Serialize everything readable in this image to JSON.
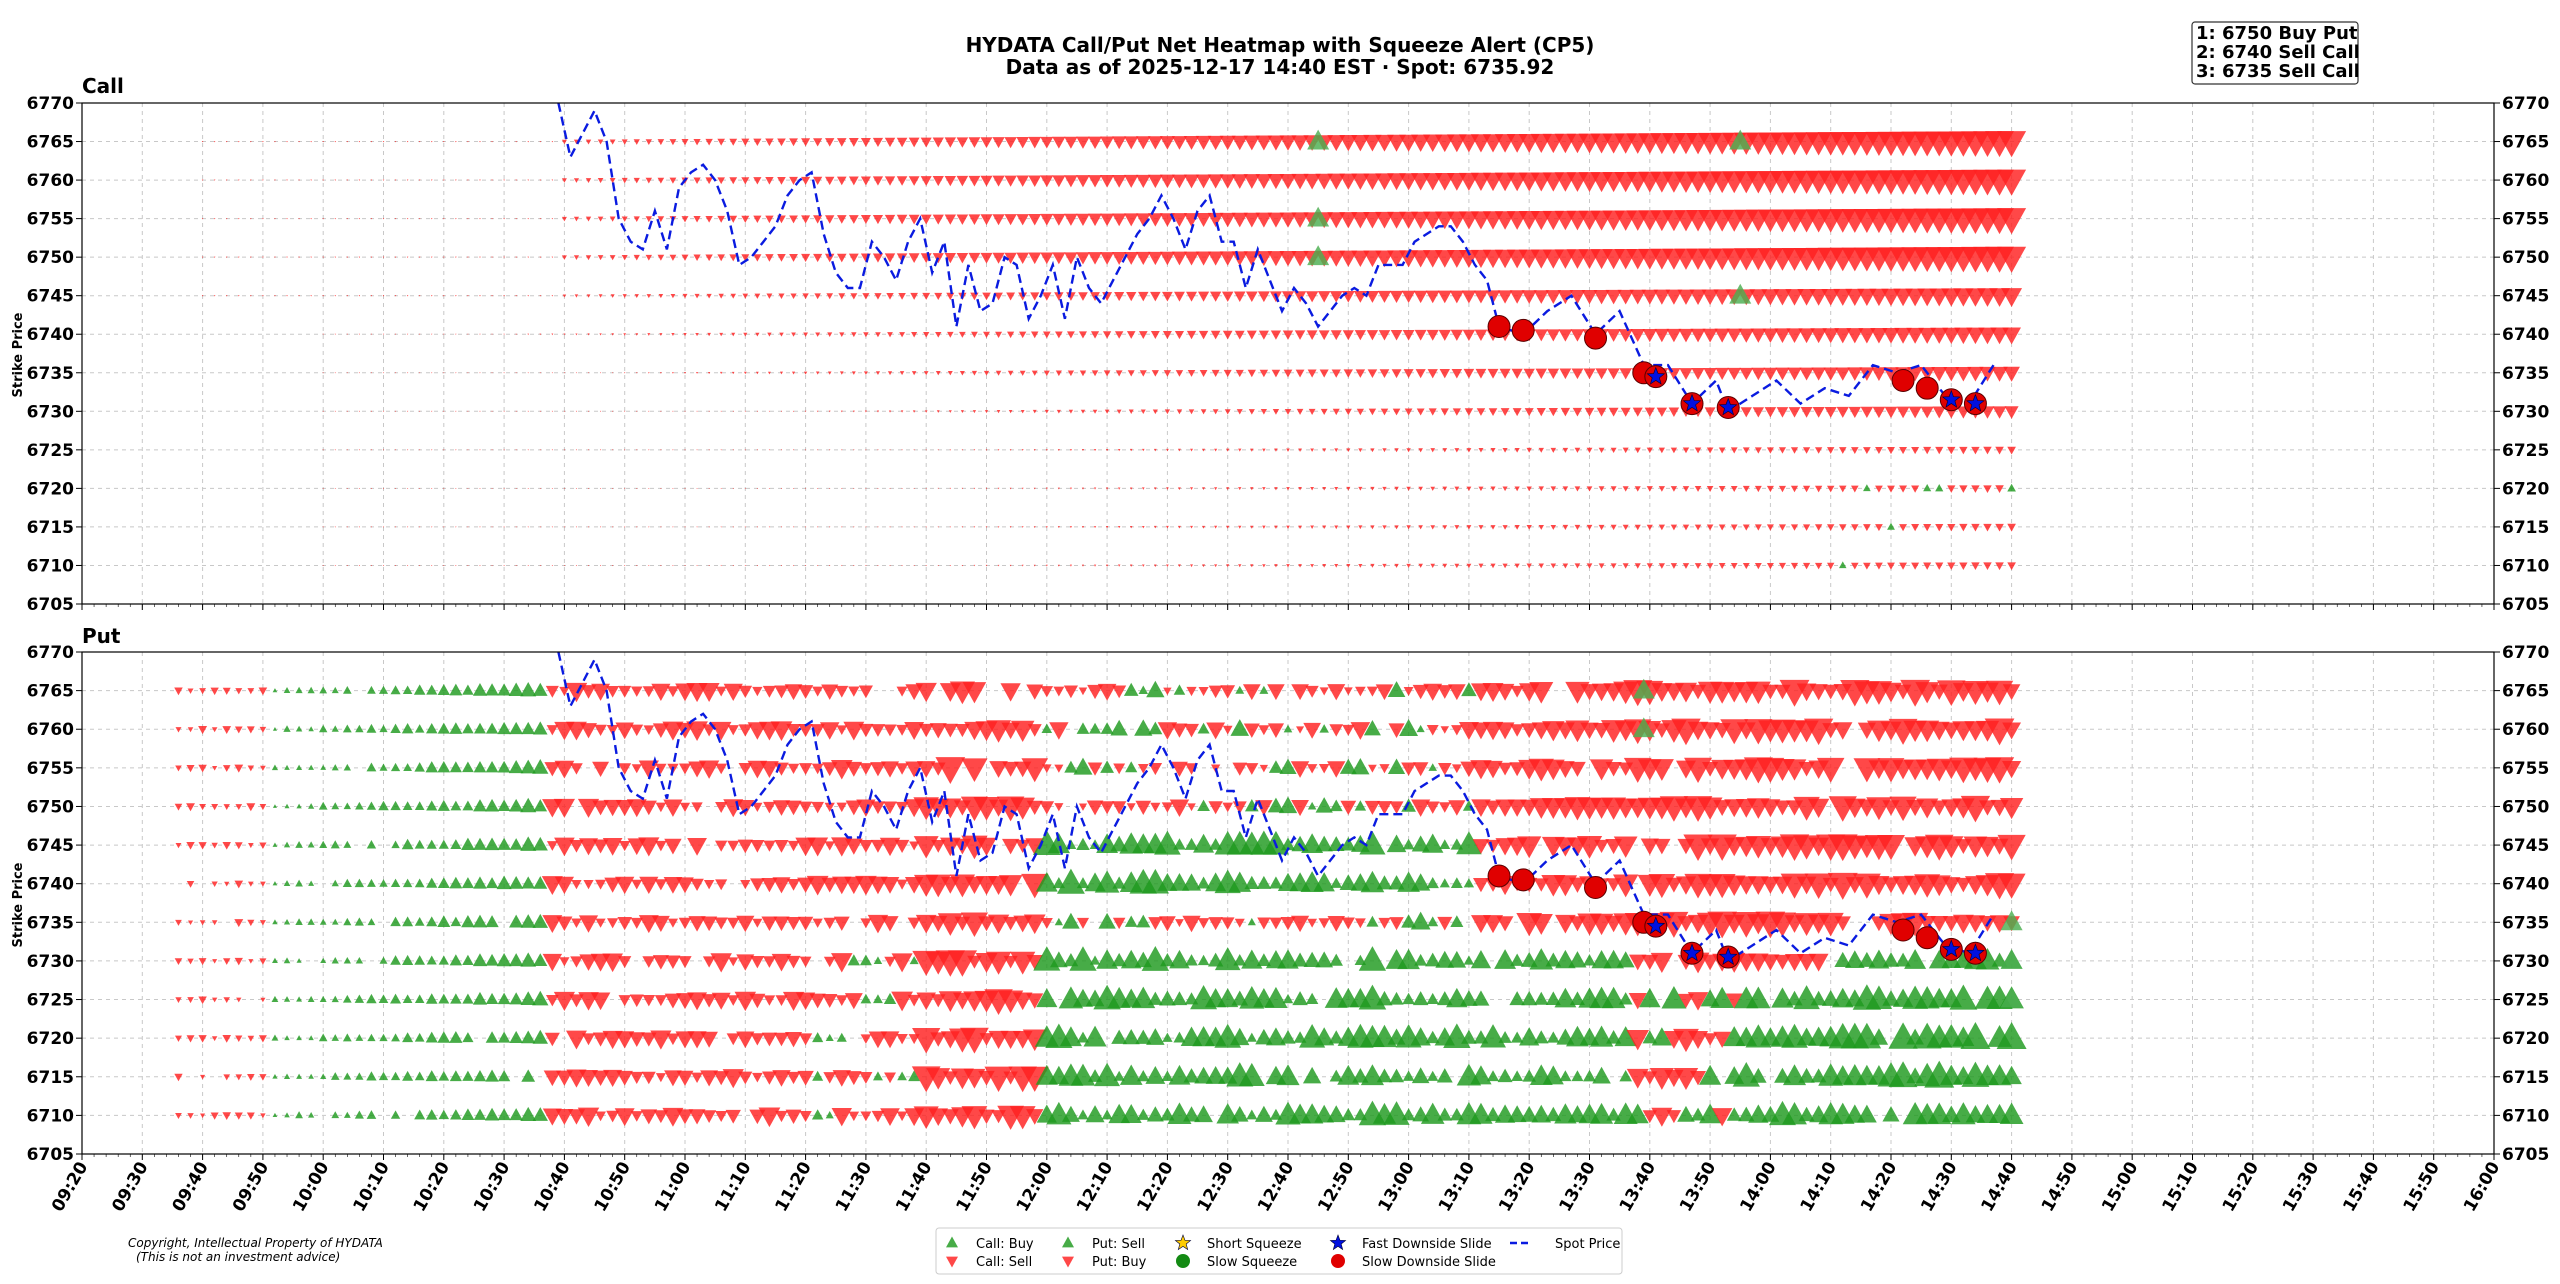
{
  "title_line1": "HYDATA Call/Put Net Heatmap with Squeeze Alert (CP5)",
  "title_line2": "Data as of 2025-12-17 14:40 EST · Spot: 6735.92",
  "top_alerts": [
    "1: 6750 Buy Put",
    "2: 6740 Sell Call",
    "3: 6735 Sell Call"
  ],
  "copyright_line1": "Copyright, Intellectual Property of HYDATA",
  "copyright_line2": "(This is not an investment advice)",
  "colors": {
    "sell": "#ff2020",
    "buy": "#1f9a1f",
    "spot": "#0a1be0",
    "slide": "#e00000",
    "star": "#0010e0",
    "yellow": "#ffcc00"
  },
  "legend": [
    {
      "marker": "tri-up-green",
      "label": "Call: Buy"
    },
    {
      "marker": "tri-down-red",
      "label": "Call: Sell"
    },
    {
      "marker": "tri-up-green",
      "label": "Put: Sell"
    },
    {
      "marker": "tri-down-red",
      "label": "Put: Buy"
    },
    {
      "marker": "star-yellow",
      "label": "Short Squeeze"
    },
    {
      "marker": "circle-green",
      "label": "Slow Squeeze"
    },
    {
      "marker": "star-blue",
      "label": "Fast Downside Slide"
    },
    {
      "marker": "circle-red",
      "label": "Slow Downside Slide"
    },
    {
      "marker": "dash-blue",
      "label": "Spot Price"
    }
  ],
  "chart_data": [
    {
      "type": "scatter",
      "title": "Call",
      "ylabel": "Strike Price",
      "ylim": [
        6705,
        6770
      ],
      "yticks": [
        6770,
        6765,
        6760,
        6755,
        6750,
        6745,
        6740,
        6735,
        6730,
        6725,
        6720,
        6715,
        6710,
        6705
      ],
      "xticks": [
        "09:20",
        "09:30",
        "09:40",
        "09:50",
        "10:00",
        "10:10",
        "10:20",
        "10:30",
        "10:40",
        "10:50",
        "11:00",
        "11:10",
        "11:20",
        "11:30",
        "11:40",
        "11:50",
        "12:00",
        "12:10",
        "12:20",
        "12:30",
        "12:40",
        "12:50",
        "13:00",
        "13:10",
        "13:20",
        "13:30",
        "13:40",
        "13:50",
        "14:00",
        "14:10",
        "14:20",
        "14:30",
        "14:40",
        "14:50",
        "15:00",
        "15:10",
        "15:20",
        "15:30",
        "15:40",
        "15:50",
        "16:00"
      ],
      "xlim_minutes": [
        560,
        960
      ],
      "grid": true,
      "big_up_markers": [
        [
          765,
          6765
        ],
        [
          835,
          6765
        ],
        [
          765,
          6755
        ],
        [
          765,
          6750
        ],
        [
          835,
          6745
        ]
      ],
      "slow_slide": [
        [
          795,
          6741
        ],
        [
          799,
          6740.5
        ],
        [
          811,
          6739.5
        ],
        [
          819,
          6735
        ],
        [
          821,
          6734.5
        ],
        [
          827,
          6731
        ],
        [
          833,
          6730.5
        ],
        [
          862,
          6734
        ],
        [
          866,
          6733
        ],
        [
          870,
          6731.5
        ],
        [
          874,
          6731
        ]
      ],
      "fast_slide": [
        [
          821,
          6734.5
        ],
        [
          827,
          6731
        ],
        [
          833,
          6730.5
        ],
        [
          870,
          6731.5
        ],
        [
          874,
          6731
        ]
      ]
    },
    {
      "type": "scatter",
      "title": "Put",
      "ylabel": "Strike Price",
      "ylim": [
        6705,
        6770
      ],
      "yticks": [
        6770,
        6765,
        6760,
        6755,
        6750,
        6745,
        6740,
        6735,
        6730,
        6725,
        6720,
        6715,
        6710,
        6705
      ],
      "xticks": [
        "09:20",
        "09:30",
        "09:40",
        "09:50",
        "10:00",
        "10:10",
        "10:20",
        "10:30",
        "10:40",
        "10:50",
        "11:00",
        "11:10",
        "11:20",
        "11:30",
        "11:40",
        "11:50",
        "12:00",
        "12:10",
        "12:20",
        "12:30",
        "12:40",
        "12:50",
        "13:00",
        "13:10",
        "13:20",
        "13:30",
        "13:40",
        "13:50",
        "14:00",
        "14:10",
        "14:20",
        "14:30",
        "14:40",
        "14:50",
        "15:00",
        "15:10",
        "15:20",
        "15:30",
        "15:40",
        "15:50",
        "16:00"
      ],
      "xlim_minutes": [
        560,
        960
      ],
      "grid": true,
      "big_up_markers": [
        [
          819,
          6765
        ],
        [
          819,
          6760
        ],
        [
          880,
          6735
        ],
        [
          880,
          6730
        ],
        [
          880,
          6725
        ]
      ],
      "slow_slide": [
        [
          795,
          6741
        ],
        [
          799,
          6740.5
        ],
        [
          811,
          6739.5
        ],
        [
          819,
          6735
        ],
        [
          821,
          6734.5
        ],
        [
          827,
          6731
        ],
        [
          833,
          6730.5
        ],
        [
          862,
          6734
        ],
        [
          866,
          6733
        ],
        [
          870,
          6731.5
        ],
        [
          874,
          6731
        ]
      ],
      "fast_slide": [
        [
          821,
          6734.5
        ],
        [
          827,
          6731
        ],
        [
          833,
          6730.5
        ],
        [
          870,
          6731.5
        ],
        [
          874,
          6731
        ]
      ]
    }
  ],
  "spot_series": {
    "name": "Spot Price",
    "points": [
      [
        639,
        6771
      ],
      [
        641,
        6763
      ],
      [
        643,
        6766
      ],
      [
        645,
        6769
      ],
      [
        647,
        6765
      ],
      [
        649,
        6755
      ],
      [
        651,
        6752
      ],
      [
        653,
        6751
      ],
      [
        655,
        6756
      ],
      [
        657,
        6751
      ],
      [
        659,
        6759
      ],
      [
        661,
        6761
      ],
      [
        663,
        6762
      ],
      [
        665,
        6760
      ],
      [
        667,
        6756
      ],
      [
        669,
        6749
      ],
      [
        671,
        6750
      ],
      [
        673,
        6752
      ],
      [
        675,
        6754
      ],
      [
        677,
        6758
      ],
      [
        679,
        6760
      ],
      [
        681,
        6761
      ],
      [
        683,
        6753
      ],
      [
        685,
        6748
      ],
      [
        687,
        6746
      ],
      [
        689,
        6746
      ],
      [
        691,
        6752
      ],
      [
        693,
        6750
      ],
      [
        695,
        6747
      ],
      [
        697,
        6752
      ],
      [
        699,
        6755
      ],
      [
        701,
        6748
      ],
      [
        703,
        6752
      ],
      [
        705,
        6741
      ],
      [
        707,
        6749
      ],
      [
        709,
        6743
      ],
      [
        711,
        6744
      ],
      [
        713,
        6750
      ],
      [
        715,
        6749
      ],
      [
        717,
        6742
      ],
      [
        719,
        6745
      ],
      [
        721,
        6749
      ],
      [
        723,
        6742
      ],
      [
        725,
        6750
      ],
      [
        727,
        6746
      ],
      [
        729,
        6744
      ],
      [
        731,
        6747
      ],
      [
        733,
        6750
      ],
      [
        735,
        6753
      ],
      [
        737,
        6755
      ],
      [
        739,
        6758
      ],
      [
        741,
        6755
      ],
      [
        743,
        6751
      ],
      [
        745,
        6756
      ],
      [
        747,
        6758
      ],
      [
        749,
        6752
      ],
      [
        751,
        6752
      ],
      [
        753,
        6746
      ],
      [
        755,
        6751
      ],
      [
        757,
        6747
      ],
      [
        759,
        6743
      ],
      [
        761,
        6746
      ],
      [
        763,
        6744
      ],
      [
        765,
        6741
      ],
      [
        767,
        6743
      ],
      [
        769,
        6745
      ],
      [
        771,
        6746
      ],
      [
        773,
        6745
      ],
      [
        775,
        6749
      ],
      [
        777,
        6749
      ],
      [
        779,
        6749
      ],
      [
        781,
        6752
      ],
      [
        783,
        6753
      ],
      [
        785,
        6754
      ],
      [
        787,
        6754
      ],
      [
        789,
        6752
      ],
      [
        791,
        6749
      ],
      [
        793,
        6747
      ],
      [
        795,
        6741
      ],
      [
        799,
        6740
      ],
      [
        803,
        6743
      ],
      [
        807,
        6745
      ],
      [
        811,
        6740
      ],
      [
        815,
        6743
      ],
      [
        819,
        6736
      ],
      [
        823,
        6736
      ],
      [
        827,
        6731
      ],
      [
        831,
        6734
      ],
      [
        833,
        6730
      ],
      [
        837,
        6732
      ],
      [
        841,
        6734
      ],
      [
        845,
        6731
      ],
      [
        849,
        6733
      ],
      [
        853,
        6732
      ],
      [
        857,
        6736
      ],
      [
        861,
        6735
      ],
      [
        865,
        6736
      ],
      [
        869,
        6732
      ],
      [
        873,
        6731
      ],
      [
        877,
        6736
      ]
    ]
  }
}
